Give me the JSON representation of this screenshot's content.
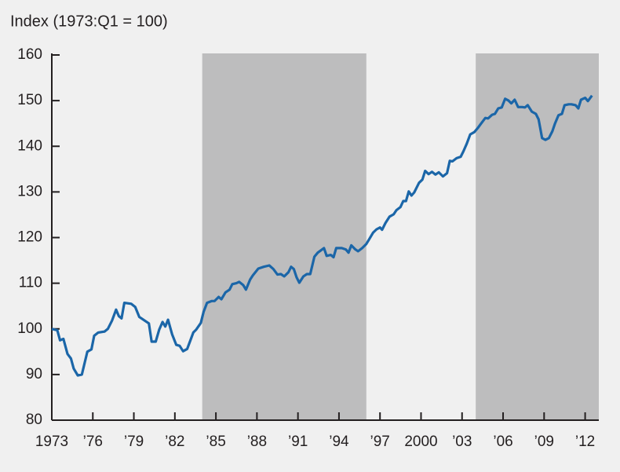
{
  "chart_data": {
    "type": "line",
    "title": "Index (1973:Q1 = 100)",
    "color": "#1b66a8",
    "shade_color": "#bdbdbe",
    "shaded_ranges": [
      [
        1984,
        1996
      ],
      [
        2004,
        2013
      ]
    ],
    "xlim": [
      1973,
      2013
    ],
    "xticks": [
      1973,
      {
        "value": 1976,
        "label": "’76"
      },
      {
        "value": 1979,
        "label": "’79"
      },
      {
        "value": 1982,
        "label": "’82"
      },
      {
        "value": 1985,
        "label": "’85"
      },
      {
        "value": 1988,
        "label": "’88"
      },
      {
        "value": 1991,
        "label": "’91"
      },
      {
        "value": 1994,
        "label": "’94"
      },
      {
        "value": 1997,
        "label": "’97"
      },
      2000,
      {
        "value": 2003,
        "label": "’03"
      },
      {
        "value": 2006,
        "label": "’06"
      },
      {
        "value": 2009,
        "label": "’09"
      },
      {
        "value": 2012,
        "label": "’12"
      }
    ],
    "ylim": [
      80,
      160
    ],
    "yticks": [
      80,
      90,
      100,
      110,
      120,
      130,
      140,
      150,
      160
    ],
    "x": [
      1973.0,
      1973.4,
      1973.6,
      1973.85,
      1974.15,
      1974.4,
      1974.6,
      1974.9,
      1975.2,
      1975.6,
      1975.9,
      1976.1,
      1976.4,
      1976.85,
      1977.1,
      1977.4,
      1977.7,
      1977.9,
      1978.1,
      1978.3,
      1978.8,
      1979.1,
      1979.4,
      1979.8,
      1980.1,
      1980.3,
      1980.6,
      1980.85,
      1981.1,
      1981.3,
      1981.5,
      1981.8,
      1982.1,
      1982.35,
      1982.6,
      1982.9,
      1983.1,
      1983.35,
      1983.55,
      1983.9,
      1984.1,
      1984.35,
      1984.7,
      1984.9,
      1985.2,
      1985.4,
      1985.7,
      1986.0,
      1986.2,
      1986.5,
      1986.7,
      1987.0,
      1987.2,
      1987.5,
      1987.7,
      1988.1,
      1988.5,
      1988.9,
      1989.2,
      1989.5,
      1989.75,
      1990.0,
      1990.3,
      1990.5,
      1990.7,
      1990.9,
      1991.1,
      1991.4,
      1991.65,
      1991.9,
      1992.2,
      1992.45,
      1992.9,
      1993.1,
      1993.4,
      1993.6,
      1993.8,
      1994.2,
      1994.5,
      1994.7,
      1994.9,
      1995.2,
      1995.4,
      1995.7,
      1996.0,
      1996.2,
      1996.5,
      1996.75,
      1997.0,
      1997.15,
      1997.4,
      1997.7,
      1998.0,
      1998.2,
      1998.5,
      1998.7,
      1998.9,
      1999.1,
      1999.3,
      1999.5,
      1999.85,
      2000.1,
      2000.3,
      2000.55,
      2000.8,
      2001.05,
      2001.3,
      2001.6,
      2001.9,
      2002.1,
      2002.3,
      2002.6,
      2002.9,
      2003.1,
      2003.35,
      2003.6,
      2003.9,
      2004.15,
      2004.4,
      2004.7,
      2004.9,
      2005.2,
      2005.4,
      2005.65,
      2005.9,
      2006.15,
      2006.4,
      2006.6,
      2006.85,
      2007.1,
      2007.4,
      2007.6,
      2007.8,
      2008.1,
      2008.4,
      2008.6,
      2008.85,
      2009.1,
      2009.35,
      2009.6,
      2009.8,
      2010.05,
      2010.3,
      2010.5,
      2010.8,
      2011.0,
      2011.3,
      2011.5,
      2011.7,
      2012.0,
      2012.2,
      2012.5
    ],
    "values": [
      100,
      99.7,
      97.5,
      97.8,
      94.5,
      93.5,
      91.3,
      89.8,
      90,
      95,
      95.5,
      98.5,
      99.2,
      99.4,
      100,
      101.8,
      104.2,
      102.8,
      102.3,
      105.7,
      105.5,
      104.8,
      102.6,
      101.8,
      101.2,
      97.2,
      97.2,
      99.8,
      101.5,
      100.5,
      102,
      98.8,
      96.5,
      96.3,
      95.1,
      95.6,
      97.2,
      99.2,
      99.8,
      101.3,
      103.7,
      105.7,
      106.1,
      106.1,
      107,
      106.5,
      108,
      108.6,
      109.8,
      110,
      110.3,
      109.6,
      108.6,
      110.8,
      111.7,
      113.2,
      113.6,
      113.9,
      113.1,
      111.9,
      112,
      111.5,
      112.4,
      113.6,
      113.1,
      111.3,
      110.1,
      111.5,
      112,
      112,
      115.8,
      116.7,
      117.7,
      116,
      116.2,
      115.7,
      117.7,
      117.7,
      117.4,
      116.7,
      118.3,
      117.4,
      117,
      117.7,
      118.6,
      119.6,
      121.1,
      121.8,
      122.2,
      121.7,
      123.2,
      124.6,
      125.1,
      126,
      126.7,
      128,
      128,
      130.1,
      129.2,
      129.9,
      132,
      132.7,
      134.6,
      133.9,
      134.4,
      133.8,
      134.3,
      133.4,
      134.1,
      136.8,
      136.7,
      137.4,
      137.7,
      138.9,
      140.6,
      142.6,
      143.1,
      144,
      145,
      146.2,
      146.1,
      146.9,
      147.1,
      148.3,
      148.5,
      150.4,
      150,
      149.4,
      150.2,
      148.6,
      148.6,
      148.5,
      149,
      147.6,
      147.1,
      145.9,
      141.8,
      141.4,
      141.8,
      143.3,
      145,
      146.8,
      147.1,
      149,
      149.2,
      149.2,
      149,
      148.3,
      150.2,
      150.6,
      149.9,
      151.1
    ]
  }
}
